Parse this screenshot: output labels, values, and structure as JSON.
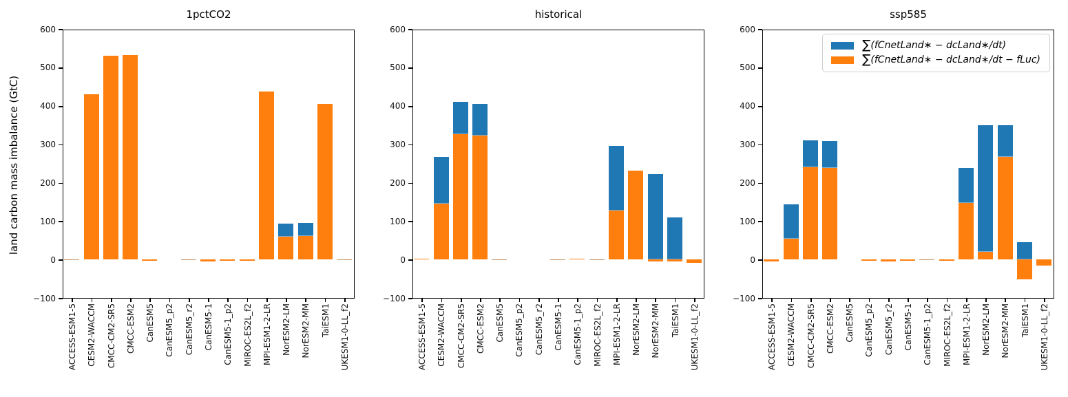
{
  "figure": {
    "ylabel": "land carbon mass imbalance (GtC)",
    "colors": {
      "blue": "#1f77b4",
      "orange": "#ff7f0e"
    },
    "legend": [
      {
        "color": "#1f77b4",
        "sigma": "∑",
        "rest": "(fCnetLand∗ − dcLand∗/dt)",
        "full_label": "∑(fCnetLand∗ − dcLand∗/dt)"
      },
      {
        "color": "#ff7f0e",
        "sigma": "∑",
        "rest": "(fCnetLand∗ − dcLand∗/dt − fLuc)",
        "full_label": "∑(fCnetLand∗ − dcLand∗/dt − fLuc)"
      }
    ],
    "legend_position": "upper right of third panel"
  },
  "chart_data": [
    {
      "type": "bar",
      "title": "1pctCO2",
      "xlabel": "",
      "ylabel": "land carbon mass imbalance (GtC)",
      "ylim": [
        -100,
        600
      ],
      "yticks": [
        600,
        500,
        400,
        300,
        200,
        100,
        0,
        -100
      ],
      "yticklabels": [
        "600",
        "500",
        "400",
        "300",
        "200",
        "100",
        "0",
        "−100"
      ],
      "grid": false,
      "categories": [
        "ACCESS-ESM1-5",
        "CESM2-WACCM",
        "CMCC-CM2-SR5",
        "CMCC-ESM2",
        "CanESM5",
        "CanESM5_p2",
        "CanESM5_r2",
        "CanESM5-1",
        "CanESM5-1_p2",
        "MIROC-ES2L_f2",
        "MPI-ESM1-2-LR",
        "NorESM2-LM",
        "NorESM2-MM",
        "TaiESM1",
        "UKESM1-0-LL_f2"
      ],
      "series": [
        {
          "name": "∑(fCnetLand∗ − dcLand∗/dt)",
          "color": "#1f77b4",
          "values": [
            -2,
            431,
            530,
            532,
            -3,
            0,
            -1,
            -4,
            -3,
            -3,
            438,
            93,
            95,
            405,
            -2
          ]
        },
        {
          "name": "∑(fCnetLand∗ − dcLand∗/dt − fLuc)",
          "color": "#ff7f0e",
          "values": [
            -2,
            431,
            530,
            532,
            -3,
            0,
            -1,
            -4,
            -3,
            -3,
            438,
            60,
            62,
            405,
            -2
          ]
        }
      ]
    },
    {
      "type": "bar",
      "title": "historical",
      "xlabel": "",
      "ylabel": "land carbon mass imbalance (GtC)",
      "ylim": [
        -100,
        600
      ],
      "yticks": [
        600,
        500,
        400,
        300,
        200,
        100,
        0,
        -100
      ],
      "yticklabels": [
        "600",
        "500",
        "400",
        "300",
        "200",
        "100",
        "0",
        "−100"
      ],
      "grid": false,
      "categories": [
        "ACCESS-ESM1-5",
        "CESM2-WACCM",
        "CMCC-CM2-SR5",
        "CMCC-ESM2",
        "CanESM5",
        "CanESM5_p2",
        "CanESM5_r2",
        "CanESM5-1",
        "CanESM5-1_p2",
        "MIROC-ES2L_f2",
        "MPI-ESM1-2-LR",
        "NorESM2-LM",
        "NorESM2-MM",
        "TaiESM1",
        "UKESM1-0-LL_f2"
      ],
      "series": [
        {
          "name": "∑(fCnetLand∗ − dcLand∗/dt)",
          "color": "#1f77b4",
          "values": [
            3,
            268,
            411,
            406,
            1,
            0,
            0,
            1,
            3,
            1,
            296,
            232,
            223,
            110,
            -8
          ]
        },
        {
          "name": "∑(fCnetLand∗ − dcLand∗/dt − fLuc)",
          "color": "#ff7f0e",
          "values": [
            3,
            146,
            327,
            322,
            1,
            0,
            0,
            1,
            3,
            1,
            128,
            232,
            -5,
            -4,
            -8
          ]
        }
      ]
    },
    {
      "type": "bar",
      "title": "ssp585",
      "xlabel": "",
      "ylabel": "land carbon mass imbalance (GtC)",
      "ylim": [
        -100,
        600
      ],
      "yticks": [
        600,
        500,
        400,
        300,
        200,
        100,
        0,
        -100
      ],
      "yticklabels": [
        "600",
        "500",
        "400",
        "300",
        "200",
        "100",
        "0",
        "−100"
      ],
      "grid": false,
      "legend_visible": true,
      "categories": [
        "ACCESS-ESM1-5",
        "CESM2-WACCM",
        "CMCC-CM2-SR5",
        "CMCC-ESM2",
        "CanESM5",
        "CanESM5_p2",
        "CanESM5_r2",
        "CanESM5-1",
        "CanESM5-1_p2",
        "MIROC-ES2L_f2",
        "MPI-ESM1-2-LR",
        "NorESM2-LM",
        "NorESM2-MM",
        "TaiESM1",
        "UKESM1-0-LL_f2"
      ],
      "series": [
        {
          "name": "∑(fCnetLand∗ − dcLand∗/dt)",
          "color": "#1f77b4",
          "values": [
            -5,
            143,
            310,
            308,
            0,
            -3,
            -4,
            -3,
            -2,
            -3,
            238,
            350,
            350,
            46,
            -15
          ]
        },
        {
          "name": "∑(fCnetLand∗ − dcLand∗/dt − fLuc)",
          "color": "#ff7f0e",
          "values": [
            -5,
            55,
            241,
            238,
            0,
            -3,
            -4,
            -3,
            -2,
            -3,
            147,
            20,
            267,
            -52,
            -15
          ]
        }
      ]
    }
  ]
}
